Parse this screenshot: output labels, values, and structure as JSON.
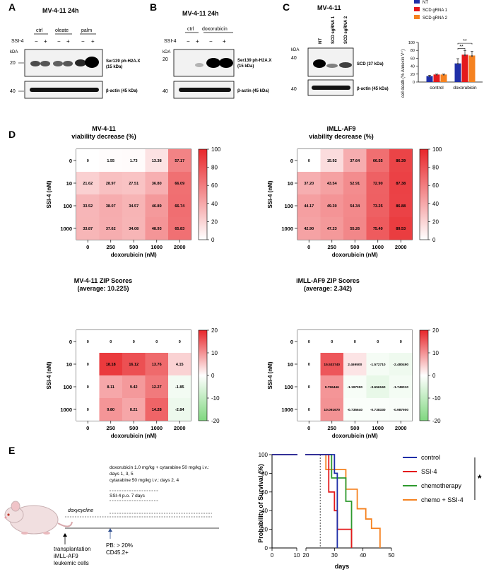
{
  "panel_a": {
    "letter": "A",
    "title": "MV-4-11 24h",
    "groups": [
      "ctrl",
      "oleate",
      "palm"
    ],
    "ssi_label": "SSI-4",
    "signs": [
      "−",
      "+",
      "−",
      "+",
      "−",
      "+"
    ],
    "kda": "kDA",
    "marker_top": "20",
    "marker_bottom": "40",
    "band1_label": "Ser139 ph-H2A.X",
    "band1_sub": "(15 kDa)",
    "band2_label": "β-actin (45 kDa)"
  },
  "panel_b": {
    "letter": "B",
    "title": "MV-4-11 24h",
    "groups": [
      "ctrl",
      "doxorubicin"
    ],
    "ssi_label": "SSI-4",
    "signs": [
      "−",
      "+",
      "−",
      "+"
    ],
    "kda": "kDA",
    "marker_top": "20",
    "marker_bottom": "40",
    "band1_label": "Ser139 ph-H2A.X",
    "band1_sub": "(15 kDa)",
    "band2_label": "β-actin (45 kDa)"
  },
  "panel_c": {
    "letter": "C",
    "title": "MV-4-11",
    "lanes": [
      "NT",
      "SCD sgRNA 1",
      "SCD sgRNA 2"
    ],
    "kda": "kDA",
    "marker_top": "40",
    "marker_bottom": "40",
    "band1_label": "SCD (37 kDa)",
    "band2_label": "β-actin (45 kDa)"
  },
  "colors": {
    "nt": "#1f2fa8",
    "sg1": "#e41a1c",
    "sg2": "#f58220",
    "heat_red": "#e8262a",
    "heat_green": "#7fd77f",
    "survival_control": "#1f2fa8",
    "survival_ssi4": "#e41a1c",
    "survival_chemo": "#2e9a2e",
    "survival_combo": "#f58220"
  },
  "panel_d": {
    "letter": "D",
    "row_labels": [
      "0",
      "10",
      "100",
      "1000"
    ],
    "col_labels": [
      "0",
      "250",
      "500",
      "1000",
      "2000"
    ],
    "ylabel": "SSI-4 (nM)",
    "xlabel": "doxorubicin (nM)",
    "heatmaps": [
      {
        "title1": "MV-4-11",
        "title2": "viability decrease (%)",
        "cbar": [
          "100",
          "80",
          "60",
          "40",
          "20",
          "0"
        ],
        "values": [
          [
            "0",
            "1.55",
            "1.73",
            "13.38",
            "57.17"
          ],
          [
            "21.62",
            "28.97",
            "27.51",
            "36.80",
            "66.09"
          ],
          [
            "33.52",
            "38.07",
            "34.57",
            "46.89",
            "66.74"
          ],
          [
            "33.87",
            "37.62",
            "34.08",
            "48.93",
            "65.83"
          ]
        ]
      },
      {
        "title1": "iMLL-AF9",
        "title2": "viability decrease (%)",
        "cbar": [
          "100",
          "80",
          "60",
          "40",
          "20",
          "0"
        ],
        "values": [
          [
            "0",
            "15.92",
            "37.64",
            "66.55",
            "86.39"
          ],
          [
            "37.20",
            "43.54",
            "52.91",
            "72.90",
            "87.38"
          ],
          [
            "44.17",
            "49.30",
            "54.34",
            "73.25",
            "86.88"
          ],
          [
            "42.90",
            "47.23",
            "55.26",
            "75.40",
            "89.53"
          ]
        ]
      },
      {
        "title1": "MV-4-11 ZIP Scores",
        "title2": "(average: 10.225)",
        "cbar": [
          "20",
          "10",
          "0",
          "-10",
          "-20"
        ],
        "values": [
          [
            "0",
            "0",
            "0",
            "0",
            "0"
          ],
          [
            "0",
            "18.18",
            "16.12",
            "13.76",
            "4.15"
          ],
          [
            "0",
            "8.11",
            "9.42",
            "12.27",
            "-1.85"
          ],
          [
            "0",
            "9.80",
            "8.21",
            "14.28",
            "-2.84"
          ]
        ]
      },
      {
        "title1": "iMLL-AF9 ZIP Scores",
        "title2": "(average: 2.342)",
        "cbar": [
          "20",
          "10",
          "0",
          "-10",
          "-20"
        ],
        "values": [
          [
            "0",
            "0",
            "0",
            "0",
            "0"
          ],
          [
            "0",
            "15.533740",
            "2.469500",
            "-1.572710",
            "-2.480490"
          ],
          [
            "0",
            "9.796446",
            "-1.197000",
            "-3.656160",
            "-1.749010"
          ],
          [
            "0",
            "10.091670",
            "-0.735640",
            "-0.738330",
            "-0.987900"
          ]
        ]
      }
    ]
  },
  "panel_e": {
    "letter": "E",
    "treatment_line1": "doxorubicin 1.0 mg/kg + cytarabine 50 mg/kg i.v.:",
    "treatment_line2": "days 1, 3, 5",
    "treatment_line3": "cytarabine 50 mg/kg i.v.: days 2, 4",
    "ssi_line": "SSI-4 p.o. 7 days",
    "doxycycline": "doxycycline",
    "transplant1": "transplantation",
    "transplant2": "iMLL-AF9",
    "transplant3": "leukemic cells",
    "pb1": "PB: > 20%",
    "pb2": "CD45.2+",
    "significance": "*"
  },
  "chart_data": [
    {
      "type": "bar",
      "title": "",
      "ylabel": "cell death (% Annexin V⁺)",
      "categories": [
        "control",
        "doxorubicin"
      ],
      "ylim": [
        0,
        100
      ],
      "yticks": [
        "100",
        "80",
        "60",
        "40",
        "20",
        "0"
      ],
      "series": [
        {
          "name": "NT",
          "values": [
            15,
            47
          ],
          "errors": [
            2,
            12
          ]
        },
        {
          "name": "SCD gRNA 1",
          "values": [
            19,
            69
          ],
          "errors": [
            1,
            11
          ]
        },
        {
          "name": "SCD gRNA 2",
          "values": [
            19,
            67
          ],
          "errors": [
            1,
            11
          ]
        }
      ],
      "annotations": [
        "**",
        "**"
      ]
    },
    {
      "type": "line",
      "title": "",
      "xlabel": "days",
      "ylabel": "Probability of Survival (%)",
      "xticks": [
        "0",
        "10",
        "20",
        "30",
        "40",
        "50"
      ],
      "yticks": [
        "100",
        "80",
        "60",
        "40",
        "20",
        "0"
      ],
      "series": [
        {
          "name": "control",
          "points": [
            [
              0,
              100
            ],
            [
              30,
              100
            ],
            [
              30,
              80
            ],
            [
              31,
              80
            ],
            [
              31,
              0
            ]
          ]
        },
        {
          "name": "SSI-4",
          "points": [
            [
              0,
              100
            ],
            [
              28,
              100
            ],
            [
              28,
              60
            ],
            [
              30,
              60
            ],
            [
              30,
              40
            ],
            [
              31,
              40
            ],
            [
              31,
              20
            ],
            [
              36,
              20
            ],
            [
              36,
              0
            ]
          ]
        },
        {
          "name": "chemotherapy",
          "points": [
            [
              0,
              100
            ],
            [
              29,
              100
            ],
            [
              29,
              75
            ],
            [
              34,
              75
            ],
            [
              34,
              50
            ],
            [
              36,
              50
            ],
            [
              36,
              0
            ]
          ]
        },
        {
          "name": "chemo + SSI-4",
          "points": [
            [
              0,
              100
            ],
            [
              27,
              100
            ],
            [
              27,
              84
            ],
            [
              34,
              84
            ],
            [
              34,
              63
            ],
            [
              38,
              63
            ],
            [
              38,
              42
            ],
            [
              41,
              42
            ],
            [
              41,
              31
            ],
            [
              43,
              31
            ],
            [
              43,
              21
            ],
            [
              46,
              21
            ],
            [
              46,
              0
            ]
          ]
        }
      ]
    }
  ]
}
